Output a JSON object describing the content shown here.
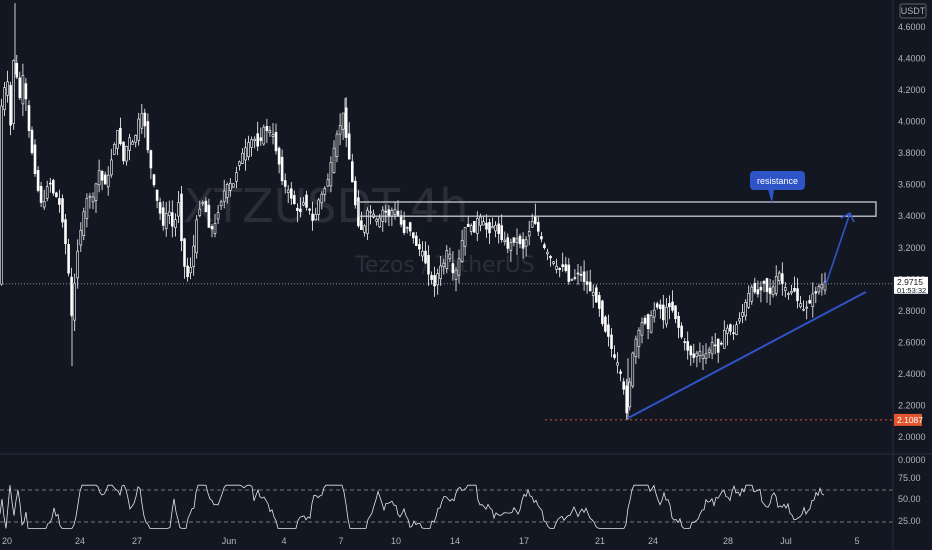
{
  "chart_data": {
    "type": "candlestick",
    "symbol": "XTZUSDT",
    "interval": "4h",
    "description": "Tezos / TetherUS",
    "currency": "USDT",
    "y_ticks": [
      "4.6000",
      "4.4000",
      "4.2000",
      "4.0000",
      "3.8000",
      "3.6000",
      "3.4000",
      "3.2000",
      "3.0000",
      "2.8000",
      "2.6000",
      "2.4000",
      "2.2000",
      "2.0000"
    ],
    "x_ticks": [
      "20",
      "24",
      "27",
      "Jun",
      "4",
      "7",
      "10",
      "14",
      "17",
      "21",
      "24",
      "28",
      "Jul",
      "5"
    ],
    "ylim": [
      2.0,
      4.6
    ],
    "price_path": [
      [
        0,
        4.25
      ],
      [
        4,
        4.05
      ],
      [
        8,
        4.35
      ],
      [
        12,
        3.95
      ],
      [
        16,
        4.5
      ],
      [
        20,
        4.1
      ],
      [
        25,
        4.3
      ],
      [
        30,
        3.95
      ],
      [
        35,
        3.75
      ],
      [
        40,
        3.55
      ],
      [
        45,
        3.45
      ],
      [
        50,
        3.65
      ],
      [
        55,
        3.55
      ],
      [
        60,
        3.5
      ],
      [
        65,
        3.35
      ],
      [
        70,
        3.05
      ],
      [
        73,
        2.75
      ],
      [
        76,
        2.95
      ],
      [
        80,
        3.25
      ],
      [
        85,
        3.4
      ],
      [
        90,
        3.55
      ],
      [
        95,
        3.5
      ],
      [
        100,
        3.7
      ],
      [
        105,
        3.6
      ],
      [
        110,
        3.65
      ],
      [
        115,
        3.85
      ],
      [
        120,
        3.95
      ],
      [
        125,
        3.75
      ],
      [
        130,
        3.9
      ],
      [
        135,
        3.85
      ],
      [
        140,
        4.0
      ],
      [
        145,
        4.05
      ],
      [
        150,
        3.8
      ],
      [
        155,
        3.6
      ],
      [
        160,
        3.45
      ],
      [
        165,
        3.35
      ],
      [
        170,
        3.45
      ],
      [
        175,
        3.3
      ],
      [
        180,
        3.5
      ],
      [
        185,
        3.1
      ],
      [
        190,
        3.0
      ],
      [
        195,
        3.2
      ],
      [
        200,
        3.45
      ],
      [
        205,
        3.5
      ],
      [
        210,
        3.35
      ],
      [
        215,
        3.3
      ],
      [
        220,
        3.45
      ],
      [
        225,
        3.55
      ],
      [
        230,
        3.6
      ],
      [
        235,
        3.6
      ],
      [
        240,
        3.75
      ],
      [
        245,
        3.8
      ],
      [
        250,
        3.85
      ],
      [
        255,
        3.9
      ],
      [
        260,
        3.85
      ],
      [
        265,
        3.95
      ],
      [
        270,
        3.95
      ],
      [
        275,
        3.9
      ],
      [
        280,
        3.75
      ],
      [
        285,
        3.6
      ],
      [
        290,
        3.55
      ],
      [
        295,
        3.5
      ],
      [
        300,
        3.4
      ],
      [
        305,
        3.5
      ],
      [
        310,
        3.45
      ],
      [
        315,
        3.35
      ],
      [
        320,
        3.5
      ],
      [
        325,
        3.55
      ],
      [
        330,
        3.65
      ],
      [
        335,
        3.8
      ],
      [
        340,
        3.95
      ],
      [
        345,
        4.05
      ],
      [
        350,
        3.8
      ],
      [
        355,
        3.55
      ],
      [
        360,
        3.35
      ],
      [
        365,
        3.3
      ],
      [
        370,
        3.45
      ],
      [
        375,
        3.4
      ],
      [
        380,
        3.35
      ],
      [
        385,
        3.45
      ],
      [
        390,
        3.4
      ],
      [
        395,
        3.45
      ],
      [
        400,
        3.4
      ],
      [
        405,
        3.3
      ],
      [
        410,
        3.35
      ],
      [
        415,
        3.25
      ],
      [
        420,
        3.2
      ],
      [
        425,
        3.15
      ],
      [
        430,
        3.05
      ],
      [
        435,
        2.95
      ],
      [
        440,
        3.05
      ],
      [
        445,
        3.1
      ],
      [
        450,
        3.2
      ],
      [
        455,
        3.0
      ],
      [
        460,
        3.1
      ],
      [
        465,
        3.3
      ],
      [
        470,
        3.35
      ],
      [
        475,
        3.3
      ],
      [
        480,
        3.4
      ],
      [
        485,
        3.35
      ],
      [
        490,
        3.3
      ],
      [
        495,
        3.35
      ],
      [
        500,
        3.3
      ],
      [
        505,
        3.25
      ],
      [
        510,
        3.2
      ],
      [
        515,
        3.25
      ],
      [
        520,
        3.25
      ],
      [
        525,
        3.2
      ],
      [
        530,
        3.3
      ],
      [
        535,
        3.4
      ],
      [
        540,
        3.3
      ],
      [
        545,
        3.2
      ],
      [
        550,
        3.15
      ],
      [
        555,
        3.1
      ],
      [
        560,
        3.05
      ],
      [
        565,
        3.1
      ],
      [
        570,
        3.0
      ],
      [
        575,
        3.0
      ],
      [
        580,
        3.05
      ],
      [
        585,
        3.0
      ],
      [
        590,
        2.95
      ],
      [
        595,
        2.9
      ],
      [
        600,
        2.85
      ],
      [
        605,
        2.7
      ],
      [
        610,
        2.65
      ],
      [
        615,
        2.5
      ],
      [
        620,
        2.45
      ],
      [
        625,
        2.3
      ],
      [
        628,
        2.15
      ],
      [
        632,
        2.4
      ],
      [
        636,
        2.6
      ],
      [
        640,
        2.65
      ],
      [
        645,
        2.75
      ],
      [
        650,
        2.7
      ],
      [
        655,
        2.8
      ],
      [
        660,
        2.85
      ],
      [
        665,
        2.75
      ],
      [
        670,
        2.85
      ],
      [
        675,
        2.8
      ],
      [
        680,
        2.7
      ],
      [
        685,
        2.6
      ],
      [
        690,
        2.55
      ],
      [
        695,
        2.5
      ],
      [
        700,
        2.55
      ],
      [
        705,
        2.5
      ],
      [
        710,
        2.55
      ],
      [
        715,
        2.6
      ],
      [
        720,
        2.55
      ],
      [
        725,
        2.65
      ],
      [
        730,
        2.7
      ],
      [
        735,
        2.65
      ],
      [
        740,
        2.75
      ],
      [
        745,
        2.8
      ],
      [
        750,
        2.9
      ],
      [
        755,
        2.95
      ],
      [
        760,
        2.9
      ],
      [
        765,
        3.0
      ],
      [
        770,
        2.9
      ],
      [
        775,
        2.95
      ],
      [
        780,
        3.05
      ],
      [
        785,
        2.95
      ],
      [
        790,
        2.9
      ],
      [
        795,
        2.95
      ],
      [
        800,
        2.85
      ],
      [
        805,
        2.8
      ],
      [
        810,
        2.85
      ],
      [
        815,
        2.9
      ],
      [
        820,
        2.95
      ],
      [
        825,
        2.97
      ]
    ],
    "current_price": "2.9715",
    "countdown": "01:53:32",
    "low_price": "2.1087",
    "annotations": {
      "resistance_label": "resistance",
      "resistance_zone": [
        3.4,
        3.49
      ],
      "trendline": [
        [
          628,
          2.12
        ],
        [
          866,
          2.92
        ]
      ],
      "arrow": [
        [
          826,
          2.97
        ],
        [
          850,
          3.42
        ]
      ]
    },
    "rsi_panel": {
      "y_ticks": [
        "0.0000",
        "75.00",
        "50.00",
        "25.00"
      ],
      "upper_band": 70,
      "lower_band": 30
    },
    "colors": {
      "background": "#131722",
      "candle": "#ffffff",
      "trendline": "#2f54c8",
      "resistance_box": "#c9cbd1",
      "low_marker": "#e0562f",
      "current_price_badge": "#ffffff"
    }
  }
}
